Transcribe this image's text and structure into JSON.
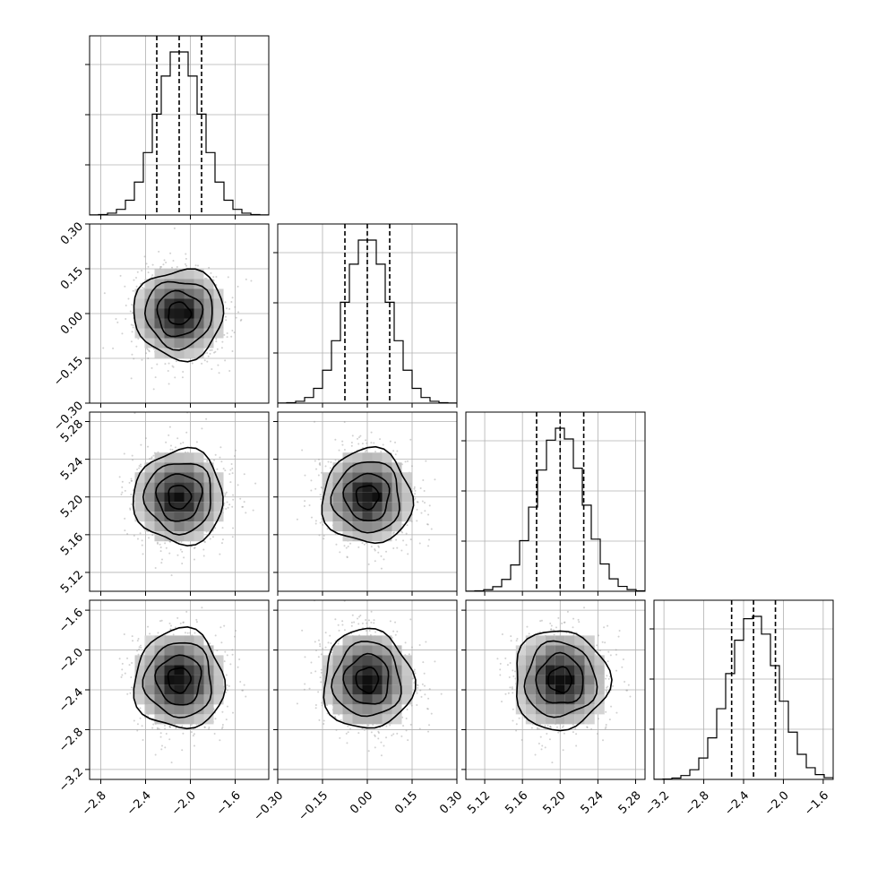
{
  "chart_data": {
    "type": "corner",
    "parameters": [
      {
        "center": -2.1,
        "sigma": 0.2,
        "range": [
          -2.9,
          -1.3
        ],
        "ticks": [
          -2.8,
          -2.4,
          -2.0,
          -1.6
        ],
        "quantiles": [
          -2.3,
          -2.1,
          -1.9
        ]
      },
      {
        "center": 0.0,
        "sigma": 0.075,
        "range": [
          -0.3,
          0.3
        ],
        "ticks": [
          -0.3,
          -0.15,
          0.0,
          0.15,
          0.3
        ],
        "quantiles": [
          -0.075,
          0.0,
          0.075
        ]
      },
      {
        "center": 5.2,
        "sigma": 0.025,
        "range": [
          5.1,
          5.29
        ],
        "ticks": [
          5.12,
          5.16,
          5.2,
          5.24,
          5.28
        ],
        "quantiles": [
          5.175,
          5.2,
          5.225
        ]
      },
      {
        "center": -2.3,
        "sigma": 0.25,
        "range": [
          -3.3,
          -1.5
        ],
        "ticks": [
          -3.2,
          -2.8,
          -2.4,
          -2.0,
          -1.6
        ],
        "quantiles": [
          -2.52,
          -2.3,
          -2.08
        ]
      }
    ],
    "tick_labels": {
      "p0": [
        "−2.8",
        "−2.4",
        "−2.0",
        "−1.6"
      ],
      "p1": [
        "−0.30",
        "−0.15",
        "0.00",
        "0.15",
        "0.30"
      ],
      "p2": [
        "5.12",
        "5.16",
        "5.20",
        "5.24",
        "5.28"
      ],
      "p3": [
        "−3.2",
        "−2.8",
        "−2.4",
        "−2.0",
        "−1.6"
      ]
    },
    "histogram_bins": 20,
    "contour_levels_sigma": [
      0.5,
      1.0,
      1.5,
      2.0
    ],
    "grid": true,
    "colors": {
      "points": "#9a9a9a",
      "lines": "#000000",
      "grid": "#b0b0b0"
    }
  }
}
